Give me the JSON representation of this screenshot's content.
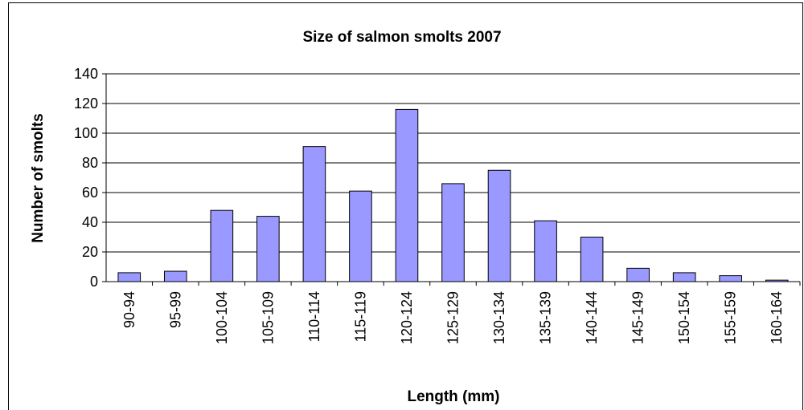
{
  "chart_data": {
    "type": "bar",
    "title": "Size of salmon smolts 2007",
    "x_label": "Length (mm)",
    "y_label": "Number of smolts",
    "categories": [
      "90-94",
      "95-99",
      "100-104",
      "105-109",
      "110-114",
      "115-119",
      "120-124",
      "125-129",
      "130-134",
      "135-139",
      "140-144",
      "145-149",
      "150-154",
      "155-159",
      "160-164"
    ],
    "values": [
      6,
      7,
      48,
      44,
      91,
      61,
      116,
      66,
      75,
      41,
      30,
      9,
      6,
      4,
      1
    ],
    "color": "#9999ff",
    "ylim": [
      0,
      140
    ],
    "yticks": [
      0,
      20,
      40,
      60,
      80,
      100,
      120,
      140
    ],
    "grid": true
  }
}
